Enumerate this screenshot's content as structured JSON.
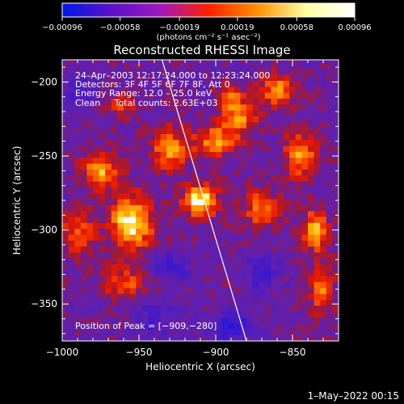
{
  "chart_data": {
    "type": "heatmap",
    "title": "Reconstructed RHESSI Image",
    "xlabel": "Heliocentric X (arcsec)",
    "ylabel": "Heliocentric Y (arcsec)",
    "xlim": [
      -1000,
      -820
    ],
    "ylim": [
      -375,
      -185
    ],
    "xticks": [
      -1000,
      -950,
      -900,
      -850
    ],
    "xtick_labels": [
      "−1000",
      "−950",
      "−900",
      "−850"
    ],
    "yticks": [
      -200,
      -250,
      -300,
      -350
    ],
    "ytick_labels": [
      "−200",
      "−250",
      "−300",
      "−350"
    ],
    "colorbar": {
      "min": -0.00096,
      "max": 0.00096,
      "tick_values": [
        -0.00096,
        -0.00058,
        -0.00019,
        0.00019,
        0.00058,
        0.00096
      ],
      "tick_labels": [
        "−0.00096",
        "−0.00058",
        "−0.00019",
        "0.00019",
        "0.00058",
        "0.00096"
      ],
      "unit_label": "(photons cm⁻² s⁻¹ asec⁻²)",
      "colors": [
        "#0018e8",
        "#5a10c8",
        "#a018c0",
        "#ff2000",
        "#ff9000",
        "#ffffa0",
        "#ffffff"
      ]
    },
    "annotations": [
      "24–Apr–2003 12:17:24.000 to 12:23:24.000",
      "Detectors: 3F 4F 5F 6F 7F 8F, Att 0",
      "Energy Range: 12.0 – 25.0 keV",
      "Clean     Total counts: 2.63E+03"
    ],
    "peak_label": "Position of Peak = [−909,−280]",
    "peak": [
      -909,
      -280
    ],
    "limb_line": [
      [
        -935,
        -185
      ],
      [
        -880,
        -375
      ]
    ],
    "hot_spots": [
      {
        "x": -955,
        "y": -295,
        "v": 1.0,
        "sx": 14,
        "sy": 18
      },
      {
        "x": -910,
        "y": -280,
        "v": 1.0,
        "sx": 11,
        "sy": 11
      },
      {
        "x": -975,
        "y": -260,
        "v": 0.75,
        "sx": 12,
        "sy": 12
      },
      {
        "x": -930,
        "y": -245,
        "v": 0.7,
        "sx": 12,
        "sy": 14
      },
      {
        "x": -900,
        "y": -240,
        "v": 0.7,
        "sx": 14,
        "sy": 10
      },
      {
        "x": -885,
        "y": -225,
        "v": 0.65,
        "sx": 12,
        "sy": 10
      },
      {
        "x": -860,
        "y": -205,
        "v": 0.7,
        "sx": 12,
        "sy": 10
      },
      {
        "x": -845,
        "y": -250,
        "v": 0.7,
        "sx": 10,
        "sy": 16
      },
      {
        "x": -870,
        "y": -285,
        "v": 0.65,
        "sx": 12,
        "sy": 12
      },
      {
        "x": -835,
        "y": -300,
        "v": 0.75,
        "sx": 8,
        "sy": 14
      },
      {
        "x": -830,
        "y": -340,
        "v": 0.65,
        "sx": 8,
        "sy": 16
      },
      {
        "x": -990,
        "y": -300,
        "v": 0.55,
        "sx": 10,
        "sy": 16
      },
      {
        "x": -960,
        "y": -335,
        "v": 0.5,
        "sx": 16,
        "sy": 10
      },
      {
        "x": -890,
        "y": -210,
        "v": 0.5,
        "sx": 10,
        "sy": 10
      },
      {
        "x": -960,
        "y": -215,
        "v": 0.45,
        "sx": 10,
        "sy": 8
      }
    ],
    "cold_spots": [
      {
        "x": -890,
        "y": -365,
        "v": 0.6,
        "sx": 14,
        "sy": 10
      },
      {
        "x": -930,
        "y": -325,
        "v": 0.45,
        "sx": 12,
        "sy": 10
      },
      {
        "x": -990,
        "y": -205,
        "v": 0.4,
        "sx": 10,
        "sy": 10
      },
      {
        "x": -870,
        "y": -330,
        "v": 0.45,
        "sx": 10,
        "sy": 12
      },
      {
        "x": -940,
        "y": -360,
        "v": 0.35,
        "sx": 14,
        "sy": 10
      }
    ]
  },
  "footer": {
    "timestamp": "1–May–2022 00:15"
  }
}
